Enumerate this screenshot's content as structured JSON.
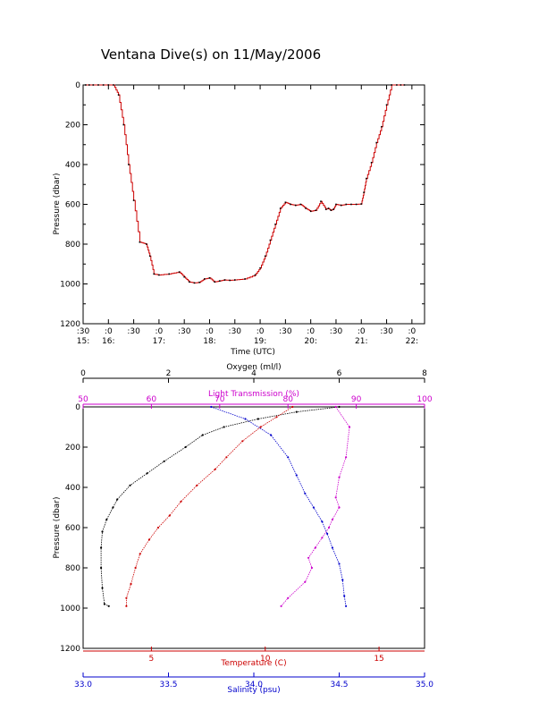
{
  "chart_data": [
    {
      "type": "line",
      "title": "Ventana Dive(s) on 11/May/2006",
      "xlabel": "Time (UTC)",
      "ylabel": "Pressure (dbar)",
      "x_unit": "hours UTC",
      "xlim": [
        15.5,
        22.25
      ],
      "ylim": [
        1200,
        0
      ],
      "x_ticks": [
        {
          "value": 15.5,
          "top": ":30",
          "bottom": "15:"
        },
        {
          "value": 16.0,
          "top": ":0",
          "bottom": "16:"
        },
        {
          "value": 16.5,
          "top": ":30",
          "bottom": ""
        },
        {
          "value": 17.0,
          "top": ":0",
          "bottom": "17:"
        },
        {
          "value": 17.5,
          "top": ":30",
          "bottom": ""
        },
        {
          "value": 18.0,
          "top": ":0",
          "bottom": "18:"
        },
        {
          "value": 18.5,
          "top": ":30",
          "bottom": ""
        },
        {
          "value": 19.0,
          "top": ":0",
          "bottom": "19:"
        },
        {
          "value": 19.5,
          "top": ":30",
          "bottom": ""
        },
        {
          "value": 20.0,
          "top": ":0",
          "bottom": "20:"
        },
        {
          "value": 20.5,
          "top": ":30",
          "bottom": ""
        },
        {
          "value": 21.0,
          "top": ":0",
          "bottom": "21:"
        },
        {
          "value": 21.5,
          "top": ":30",
          "bottom": ""
        },
        {
          "value": 22.0,
          "top": ":0",
          "bottom": "22:"
        }
      ],
      "y_ticks": [
        "0",
        "200",
        "400",
        "600",
        "800",
        "1000",
        "1200"
      ],
      "series": [
        {
          "color": "#cc0000",
          "x": [
            15.55,
            15.62,
            15.7,
            15.8,
            15.9,
            16.0,
            16.1,
            16.2,
            16.3,
            16.4,
            16.5,
            16.62,
            16.75,
            16.82,
            16.9,
            17.0,
            17.2,
            17.4,
            17.5,
            17.6,
            17.7,
            17.8,
            17.9,
            18.0,
            18.1,
            18.2,
            18.3,
            18.4,
            18.5,
            18.7,
            18.9,
            19.0,
            19.1,
            19.2,
            19.3,
            19.4,
            19.5,
            19.6,
            19.7,
            19.8,
            19.9,
            20.0,
            20.1,
            20.2,
            20.3,
            20.35,
            20.4,
            20.45,
            20.5,
            20.6,
            20.7,
            20.8,
            20.9,
            21.0,
            21.05,
            21.1,
            21.2,
            21.3,
            21.4,
            21.5,
            21.6,
            21.7,
            21.78,
            21.85
          ],
          "y": [
            0,
            0,
            0,
            0,
            0,
            0,
            0,
            50,
            200,
            400,
            580,
            790,
            800,
            860,
            950,
            955,
            950,
            940,
            965,
            990,
            995,
            992,
            975,
            970,
            990,
            985,
            980,
            982,
            980,
            975,
            955,
            920,
            860,
            780,
            700,
            620,
            590,
            600,
            605,
            600,
            620,
            635,
            630,
            585,
            625,
            620,
            630,
            625,
            600,
            605,
            600,
            600,
            600,
            598,
            540,
            470,
            390,
            290,
            210,
            100,
            0,
            0,
            0,
            0
          ]
        }
      ]
    },
    {
      "type": "scatter",
      "ylabel": "Pressure (dbar)",
      "ylim": [
        1200,
        0
      ],
      "y_ticks": [
        "0",
        "200",
        "400",
        "600",
        "800",
        "1000",
        "1200"
      ],
      "axes": [
        {
          "label": "Oxygen (ml/l)",
          "position": "top-outer",
          "color": "#000000",
          "range": [
            0,
            8
          ],
          "ticks": [
            "0",
            "2",
            "4",
            "6",
            "8"
          ]
        },
        {
          "label": "Light Transmission (%)",
          "position": "top-inner",
          "color": "#cc00cc",
          "range": [
            50,
            100
          ],
          "ticks": [
            "50",
            "60",
            "70",
            "80",
            "90",
            "100"
          ]
        },
        {
          "label": "Temperature (C)",
          "position": "bottom-inner",
          "color": "#cc0000",
          "range": [
            2,
            17
          ],
          "ticks": [
            "5",
            "10",
            "15"
          ]
        },
        {
          "label": "Salinity (psu)",
          "position": "bottom-outer",
          "color": "#0000cc",
          "range": [
            33.0,
            35.0
          ],
          "ticks": [
            "33.0",
            "33.5",
            "34.0",
            "34.5",
            "35.0"
          ]
        }
      ],
      "series": [
        {
          "name": "Oxygen (ml/l)",
          "color": "#000000",
          "x": [
            6.0,
            5.0,
            4.1,
            3.3,
            2.8,
            2.4,
            1.9,
            1.5,
            1.1,
            0.8,
            0.7,
            0.55,
            0.45,
            0.42,
            0.42,
            0.45,
            0.5,
            0.6
          ],
          "y": [
            0,
            25,
            60,
            100,
            140,
            200,
            270,
            330,
            390,
            460,
            500,
            560,
            620,
            700,
            800,
            900,
            980,
            990
          ]
        },
        {
          "name": "Light Transmission (%)",
          "color": "#cc00cc",
          "x": [
            87,
            89,
            88.5,
            87.5,
            87,
            87.5,
            86.5,
            86,
            85,
            84,
            83,
            83.5,
            82.5,
            80,
            79
          ],
          "y": [
            0,
            100,
            250,
            350,
            450,
            500,
            560,
            600,
            650,
            700,
            750,
            800,
            870,
            950,
            990
          ]
        },
        {
          "name": "Temperature (C)",
          "color": "#cc0000",
          "x": [
            11.2,
            10.5,
            9.8,
            9.0,
            8.3,
            7.8,
            7.0,
            6.3,
            5.8,
            5.3,
            4.9,
            4.5,
            4.3,
            4.1,
            3.9,
            3.9
          ],
          "y": [
            0,
            50,
            100,
            170,
            250,
            310,
            390,
            470,
            540,
            600,
            660,
            730,
            800,
            880,
            950,
            990
          ]
        },
        {
          "name": "Salinity (psu)",
          "color": "#0000cc",
          "x": [
            33.75,
            33.95,
            34.1,
            34.2,
            34.25,
            34.3,
            34.35,
            34.4,
            34.43,
            34.46,
            34.5,
            34.52,
            34.53,
            34.54
          ],
          "y": [
            0,
            60,
            140,
            250,
            340,
            430,
            500,
            570,
            630,
            700,
            780,
            860,
            940,
            990
          ]
        }
      ]
    }
  ]
}
